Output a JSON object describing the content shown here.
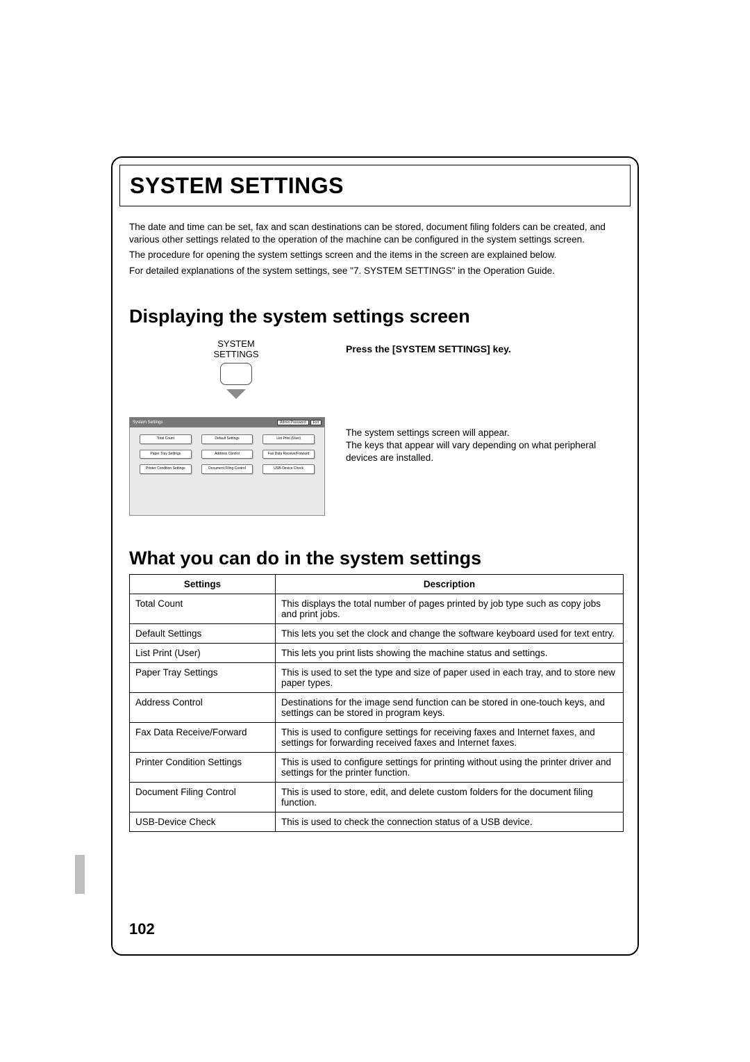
{
  "title": "SYSTEM SETTINGS",
  "intro": {
    "p1": "The date and time can be set, fax and scan destinations can be stored, document filing folders can be created, and various other settings related to the operation of the machine can be configured in the system settings screen.",
    "p2": "The procedure for opening the system settings screen and the items in the screen are explained below.",
    "p3": "For detailed explanations of the system settings, see \"7. SYSTEM SETTINGS\" in the Operation Guide."
  },
  "section1_heading": "Displaying the system settings screen",
  "section2_heading": "What you can do in the system settings",
  "key_label_line1": "SYSTEM",
  "key_label_line2": "SETTINGS",
  "instruction_bold": "Press the [SYSTEM SETTINGS] key.",
  "instruction_body": "The system settings screen will appear.\nThe keys that appear will vary depending on what peripheral devices are installed.",
  "mini_screen": {
    "bar_title": "System Settings",
    "bar_chips": [
      "Admin Password",
      "Exit"
    ],
    "buttons": [
      "Total Count",
      "Default Settings",
      "List Print (User)",
      "Paper Tray Settings",
      "Address Control",
      "Fax Data Receive/Forward",
      "Printer Condition Settings",
      "Document Filing Control",
      "USB-Device Check"
    ]
  },
  "table": {
    "headers": {
      "col1": "Settings",
      "col2": "Description"
    },
    "rows": [
      {
        "setting": "Total Count",
        "desc": "This displays the total number of pages printed by job type such as copy jobs and print jobs."
      },
      {
        "setting": "Default Settings",
        "desc": "This lets you set the clock and change the software keyboard used for text entry."
      },
      {
        "setting": "List Print (User)",
        "desc": "This lets you print lists showing the machine status and settings."
      },
      {
        "setting": "Paper Tray Settings",
        "desc": "This is used to set the type and size of paper used in each tray, and to store new paper types."
      },
      {
        "setting": "Address Control",
        "desc": "Destinations for the image send function can be stored in one-touch keys, and settings can be stored in program keys."
      },
      {
        "setting": "Fax Data Receive/Forward",
        "desc": "This is used to configure settings for receiving faxes and Internet faxes, and settings for forwarding received faxes and Internet faxes."
      },
      {
        "setting": "Printer Condition Settings",
        "desc": "This is used to configure settings for printing without using the printer driver and settings for the printer function."
      },
      {
        "setting": "Document Filing Control",
        "desc": "This is used to store, edit, and delete custom folders for the document filing function."
      },
      {
        "setting": "USB-Device Check",
        "desc": "This is used to check the connection status of a USB device."
      }
    ]
  },
  "page_number": "102",
  "colors": {
    "frame": "#000000",
    "tab": "#bfbfbf",
    "mini_bg": "#e9e9e9",
    "mini_bar": "#777777"
  }
}
